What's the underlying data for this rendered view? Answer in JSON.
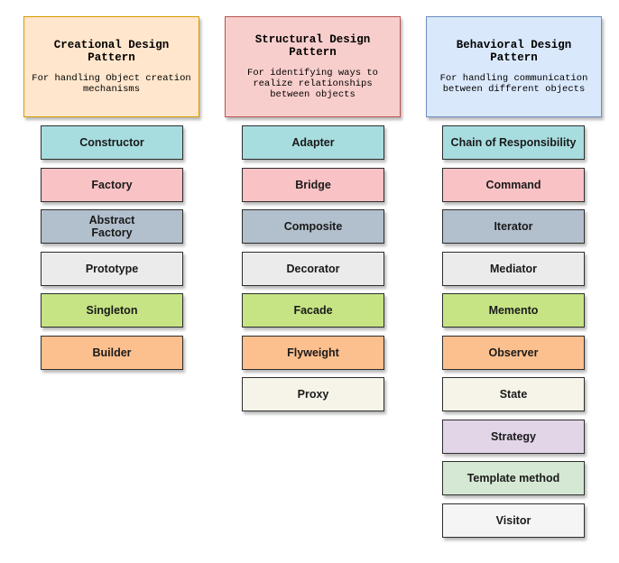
{
  "columns": [
    {
      "title": "Creational Design\nPattern",
      "desc": "For handling Object creation\nmechanisms",
      "header_bg": "#FFE6CC",
      "header_border": "#D79B00",
      "items": [
        {
          "label": "Constructor",
          "color": "#A8DDE0"
        },
        {
          "label": "Factory",
          "color": "#F9C2C5"
        },
        {
          "label": "Abstract\nFactory",
          "color": "#B2BFCC"
        },
        {
          "label": "Prototype",
          "color": "#EBEBEB"
        },
        {
          "label": "Singleton",
          "color": "#C6E484"
        },
        {
          "label": "Builder",
          "color": "#FCC08E"
        }
      ]
    },
    {
      "title": "Structural Design\nPattern",
      "desc": "For identifying ways to\nrealize relationships\nbetween objects",
      "header_bg": "#F8CECC",
      "header_border": "#B85450",
      "items": [
        {
          "label": "Adapter",
          "color": "#A8DDE0"
        },
        {
          "label": "Bridge",
          "color": "#F9C2C5"
        },
        {
          "label": "Composite",
          "color": "#B2BFCC"
        },
        {
          "label": "Decorator",
          "color": "#EBEBEB"
        },
        {
          "label": "Facade",
          "color": "#C6E484"
        },
        {
          "label": "Flyweight",
          "color": "#FCC08E"
        },
        {
          "label": "Proxy",
          "color": "#F6F4E8"
        }
      ]
    },
    {
      "title": "Behavioral Design\nPattern",
      "desc": "For handling communication\nbetween different objects",
      "header_bg": "#DAE8FC",
      "header_border": "#6C8EBF",
      "items": [
        {
          "label": "Chain of Responsibility",
          "color": "#A8DDE0"
        },
        {
          "label": "Command",
          "color": "#F9C2C5"
        },
        {
          "label": "Iterator",
          "color": "#B2BFCC"
        },
        {
          "label": "Mediator",
          "color": "#EBEBEB"
        },
        {
          "label": "Memento",
          "color": "#C6E484"
        },
        {
          "label": "Observer",
          "color": "#FCC08E"
        },
        {
          "label": "State",
          "color": "#F6F4E8"
        },
        {
          "label": "Strategy",
          "color": "#E1D5E7"
        },
        {
          "label": "Template method",
          "color": "#D5E8D4"
        },
        {
          "label": "Visitor",
          "color": "#F5F5F5"
        }
      ]
    }
  ]
}
